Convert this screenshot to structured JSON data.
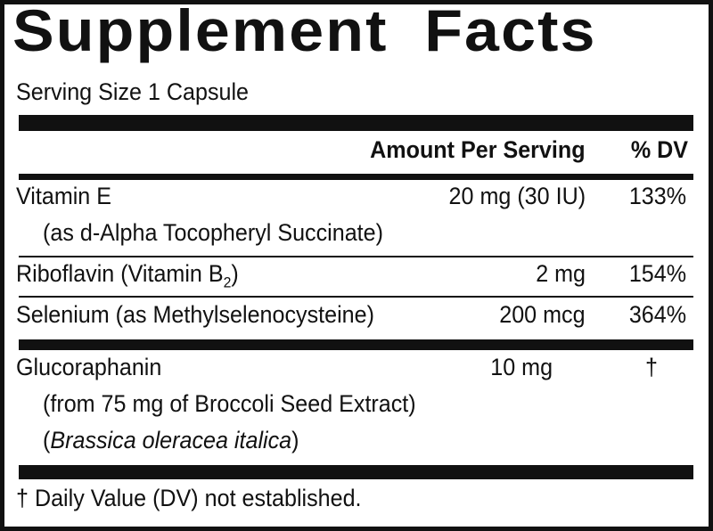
{
  "title": "Supplement Facts",
  "serving_size": "Serving Size 1 Capsule",
  "header": {
    "amount": "Amount Per Serving",
    "dv": "% DV"
  },
  "rows": [
    {
      "name": "Vitamin E",
      "sub": "(as d-Alpha Tocopheryl Succinate)",
      "amount": "20 mg (30 IU)",
      "dv": "133%"
    },
    {
      "name": "Riboflavin (Vitamin B",
      "subscript": "2",
      "name_end": ")",
      "amount": "2 mg",
      "dv": "154%"
    },
    {
      "name": "Selenium (as Methylselenocysteine)",
      "amount": "200 mcg",
      "dv": "364%"
    },
    {
      "name": "Glucoraphanin",
      "sub": "(from 75 mg of Broccoli Seed Extract)",
      "sub2_open": "(",
      "sub2_italic": "Brassica oleracea italica",
      "sub2_close": ")",
      "amount": "10 mg",
      "dv": "†"
    }
  ],
  "footnote": "† Daily Value (DV) not established."
}
